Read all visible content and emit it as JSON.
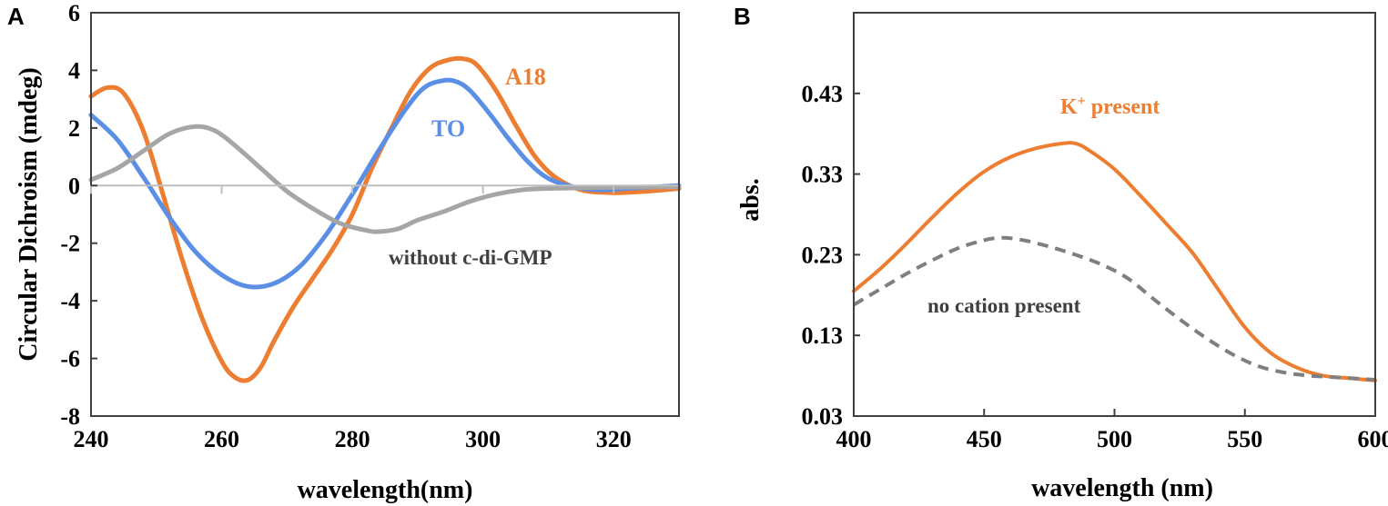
{
  "chart_data": [
    {
      "panel": "A",
      "type": "line",
      "title": "",
      "xlabel": "wavelength(nm)",
      "ylabel": "Circular Dichroism (mdeg)",
      "xlim": [
        240,
        330
      ],
      "ylim": [
        -8,
        6
      ],
      "xticks": [
        240,
        260,
        280,
        300,
        320
      ],
      "yticks": [
        -8,
        -6,
        -4,
        -2,
        0,
        2,
        4,
        6
      ],
      "grid": false,
      "zero_line": true,
      "series": [
        {
          "name": "A18",
          "color": "#ED7D31",
          "dash": false,
          "x": [
            240,
            242.5,
            245,
            248,
            251,
            254,
            257,
            260,
            262,
            264,
            266,
            268,
            271,
            274,
            277,
            280,
            283,
            286,
            289,
            292,
            295,
            297,
            299,
            302,
            305,
            308,
            311,
            315,
            320,
            325,
            330
          ],
          "y": [
            3.1,
            3.4,
            3.2,
            1.9,
            -0.3,
            -2.6,
            -4.6,
            -6.1,
            -6.65,
            -6.75,
            -6.3,
            -5.4,
            -4.2,
            -3.2,
            -2.2,
            -1.0,
            0.6,
            2.0,
            3.3,
            4.1,
            4.38,
            4.4,
            4.2,
            3.3,
            2.1,
            1.0,
            0.3,
            -0.15,
            -0.25,
            -0.2,
            -0.1
          ]
        },
        {
          "name": "TO",
          "color": "#5B8FE6",
          "dash": false,
          "x": [
            240,
            244,
            248,
            252,
            256,
            260,
            264,
            268,
            272,
            276,
            280,
            284,
            288,
            291,
            294,
            296,
            298,
            301,
            304,
            307,
            310,
            314,
            318,
            322,
            326,
            330
          ],
          "y": [
            2.45,
            1.6,
            0.3,
            -1.1,
            -2.3,
            -3.1,
            -3.5,
            -3.4,
            -2.8,
            -1.7,
            -0.3,
            1.2,
            2.6,
            3.4,
            3.65,
            3.6,
            3.3,
            2.5,
            1.6,
            0.8,
            0.25,
            -0.05,
            -0.15,
            -0.1,
            -0.05,
            0.0
          ]
        },
        {
          "name": "without c-di-GMP",
          "color": "#A6A6A6",
          "dash": false,
          "x": [
            240,
            244,
            248,
            252,
            256,
            259,
            262,
            266,
            270,
            274,
            278,
            282,
            284,
            287,
            290,
            294,
            298,
            302,
            306,
            310,
            315,
            320,
            325,
            330
          ],
          "y": [
            0.2,
            0.6,
            1.2,
            1.8,
            2.05,
            1.9,
            1.4,
            0.6,
            -0.2,
            -0.8,
            -1.3,
            -1.55,
            -1.6,
            -1.5,
            -1.2,
            -0.9,
            -0.55,
            -0.3,
            -0.15,
            -0.1,
            -0.08,
            -0.06,
            -0.05,
            -0.05
          ]
        }
      ],
      "annotations": [
        {
          "text": "A18",
          "color": "#ED7D31"
        },
        {
          "text": "TO",
          "color": "#5B8FE6"
        },
        {
          "text": "without c-di-GMP",
          "color": "#404040"
        }
      ]
    },
    {
      "panel": "B",
      "type": "line",
      "title": "",
      "xlabel": "wavelength (nm)",
      "ylabel": "abs.",
      "xlim": [
        400,
        600
      ],
      "ylim": [
        0.03,
        0.53
      ],
      "xticks": [
        400,
        450,
        500,
        550,
        600
      ],
      "yticks": [
        0.03,
        0.13,
        0.23,
        0.33,
        0.43
      ],
      "ytick_labels": [
        "0.03",
        "0.13",
        "0.23",
        "0.33",
        "0.43"
      ],
      "grid": false,
      "series": [
        {
          "name": "K+ present",
          "color": "#ED7D31",
          "dash": false,
          "x": [
            400,
            410,
            420,
            430,
            440,
            450,
            460,
            470,
            480,
            485,
            490,
            500,
            510,
            520,
            530,
            540,
            550,
            560,
            570,
            580,
            590,
            600
          ],
          "y": [
            0.185,
            0.212,
            0.243,
            0.276,
            0.307,
            0.333,
            0.351,
            0.362,
            0.368,
            0.368,
            0.36,
            0.336,
            0.303,
            0.268,
            0.232,
            0.186,
            0.14,
            0.108,
            0.09,
            0.08,
            0.077,
            0.074
          ]
        },
        {
          "name": "no cation present",
          "color": "#7F7F7F",
          "dash": true,
          "x": [
            400,
            410,
            420,
            430,
            440,
            450,
            457,
            465,
            475,
            485,
            495,
            505,
            515,
            525,
            535,
            545,
            555,
            565,
            575,
            585,
            600
          ],
          "y": [
            0.168,
            0.187,
            0.206,
            0.223,
            0.238,
            0.248,
            0.251,
            0.248,
            0.24,
            0.23,
            0.218,
            0.201,
            0.175,
            0.15,
            0.127,
            0.107,
            0.092,
            0.084,
            0.08,
            0.078,
            0.075
          ]
        }
      ],
      "annotations": [
        {
          "text": "K",
          "sup": "+",
          "rest": " present",
          "color": "#ED7D31"
        },
        {
          "text": "no cation present",
          "color": "#404040"
        }
      ]
    }
  ]
}
